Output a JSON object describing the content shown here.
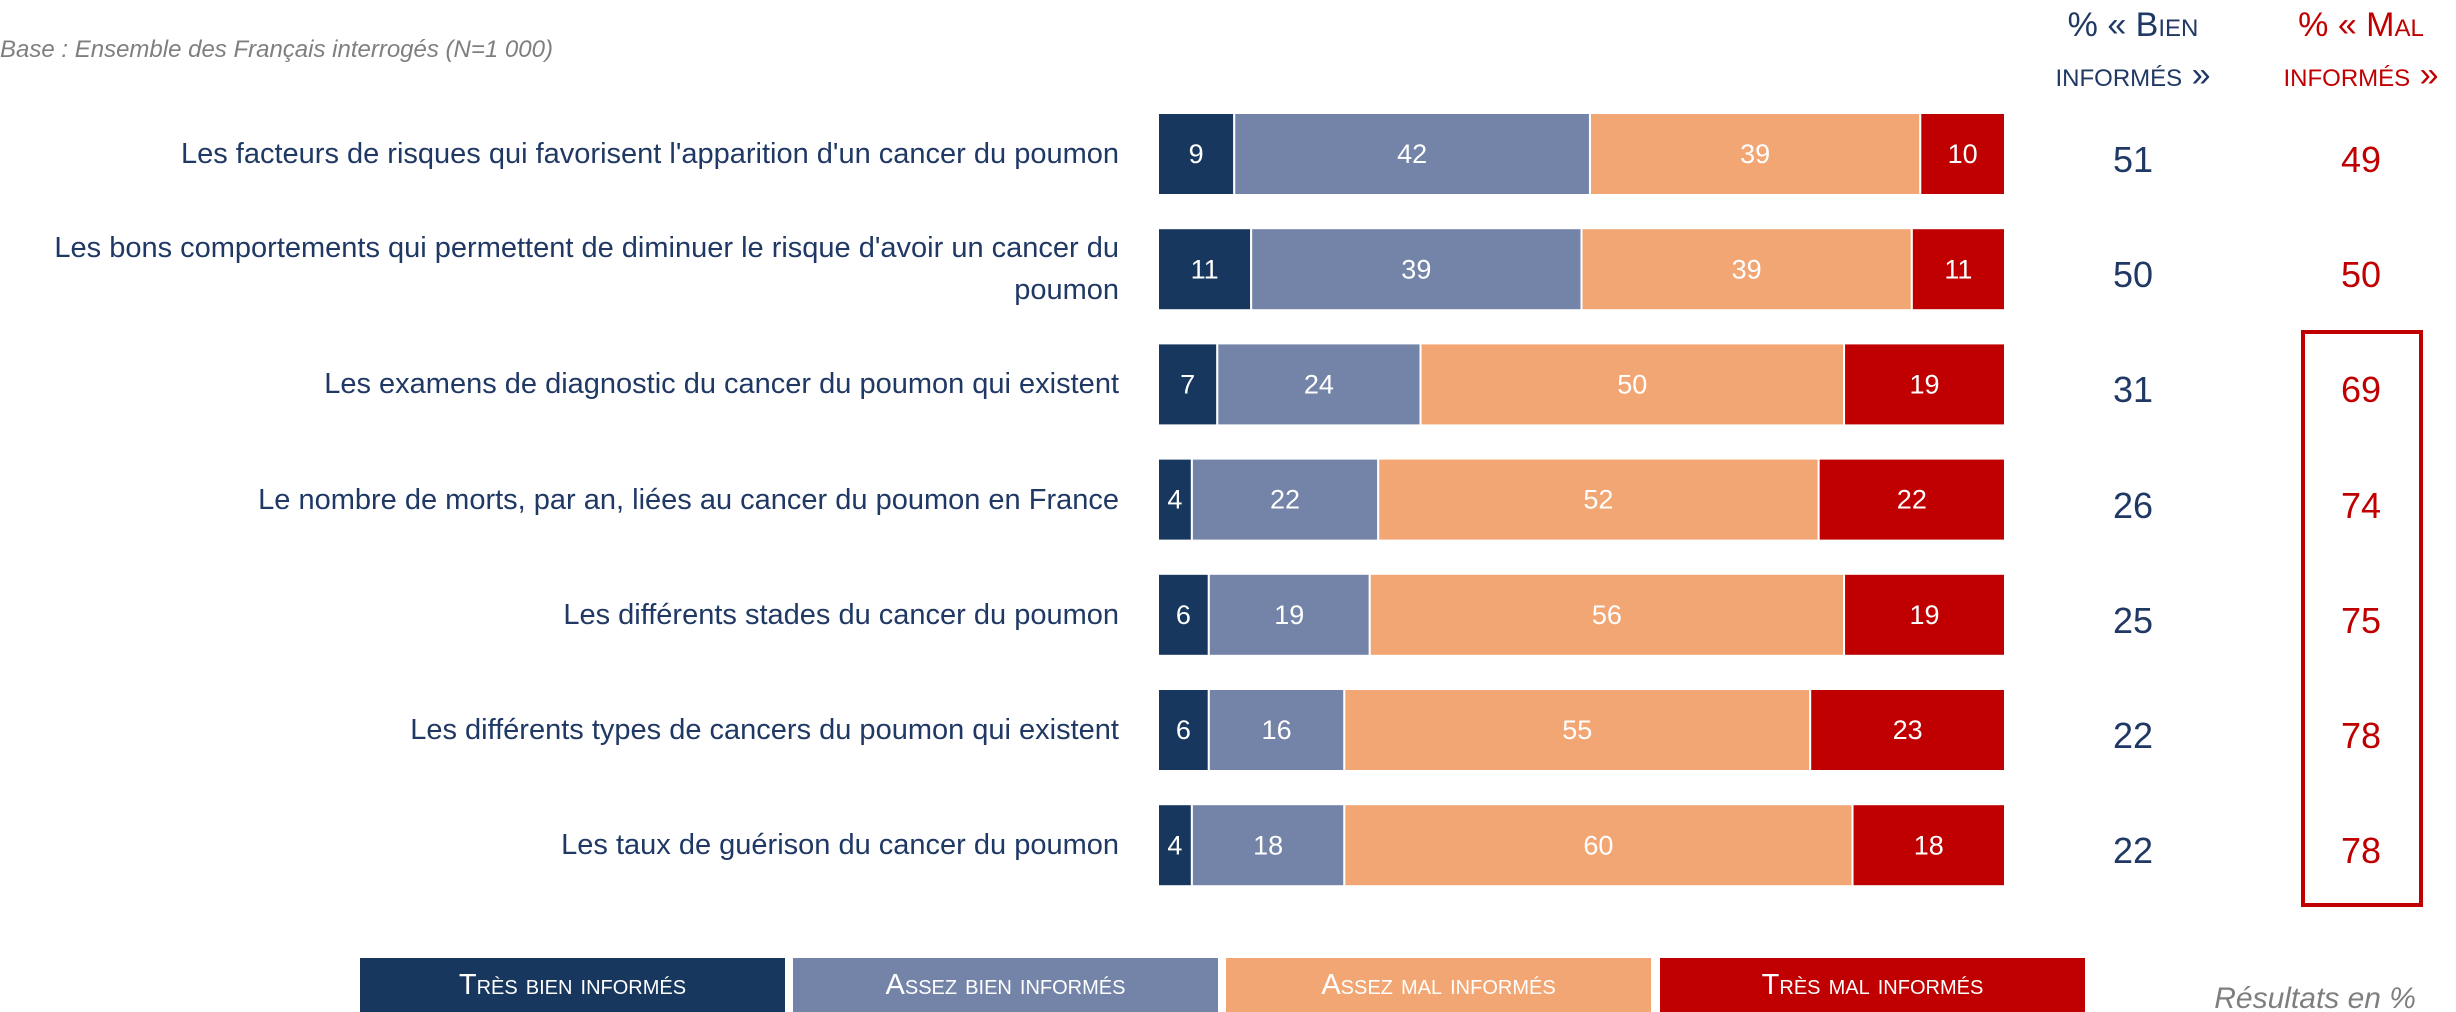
{
  "chart_data": {
    "type": "stacked-bar-horizontal",
    "note": "Base : Ensemble des Français interrogés (N=1 000)",
    "footnote": "Résultats en %",
    "categories": [
      "Les facteurs de risques qui favorisent l'apparition d'un cancer du poumon",
      "Les bons comportements qui permettent de diminuer le risque d'avoir un cancer du poumon",
      "Les examens de diagnostic du cancer du poumon qui existent",
      "Le nombre de morts, par an, liées au cancer du poumon en France",
      "Les différents stades du cancer du poumon",
      "Les différents types de cancers du poumon qui existent",
      "Les taux de guérison du cancer du poumon"
    ],
    "xlim": [
      0,
      100
    ],
    "series": [
      {
        "name": "Très bien informés",
        "color": "#17375e",
        "values": [
          9,
          11,
          7,
          4,
          6,
          6,
          4
        ]
      },
      {
        "name": "Assez bien informés",
        "color": "#7384a8",
        "values": [
          42,
          39,
          24,
          22,
          19,
          16,
          18
        ]
      },
      {
        "name": "Assez mal informés",
        "color": "#f2a673",
        "values": [
          39,
          39,
          50,
          52,
          56,
          55,
          60
        ]
      },
      {
        "name": "Très mal informés",
        "color": "#c00000",
        "values": [
          10,
          11,
          19,
          22,
          19,
          23,
          18
        ]
      }
    ],
    "summary_columns": [
      {
        "title": "% « Bien informés »",
        "color": "#1f3864",
        "values": [
          51,
          50,
          31,
          26,
          25,
          22,
          22
        ]
      },
      {
        "title": "% « Mal informés »",
        "color": "#c00000",
        "values": [
          49,
          50,
          69,
          74,
          75,
          78,
          78
        ]
      }
    ]
  }
}
